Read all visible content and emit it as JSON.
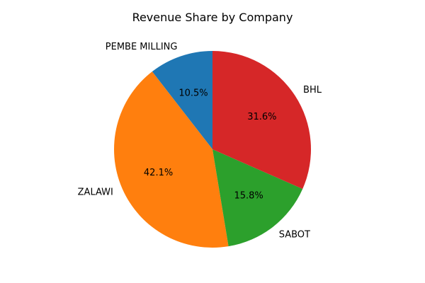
{
  "chart_data": {
    "type": "pie",
    "title": "Revenue Share by Company",
    "start_angle_deg": 90,
    "direction": "counterclockwise",
    "slices": [
      {
        "label": "PEMBE MILLING",
        "value": 10.5,
        "pct_label": "10.5%",
        "color": "#1f77b4"
      },
      {
        "label": "ZALAWI",
        "value": 42.1,
        "pct_label": "42.1%",
        "color": "#ff7f0e"
      },
      {
        "label": "SABOT",
        "value": 15.8,
        "pct_label": "15.8%",
        "color": "#2ca02c"
      },
      {
        "label": "BHL",
        "value": 31.6,
        "pct_label": "31.6%",
        "color": "#d62728"
      }
    ]
  }
}
